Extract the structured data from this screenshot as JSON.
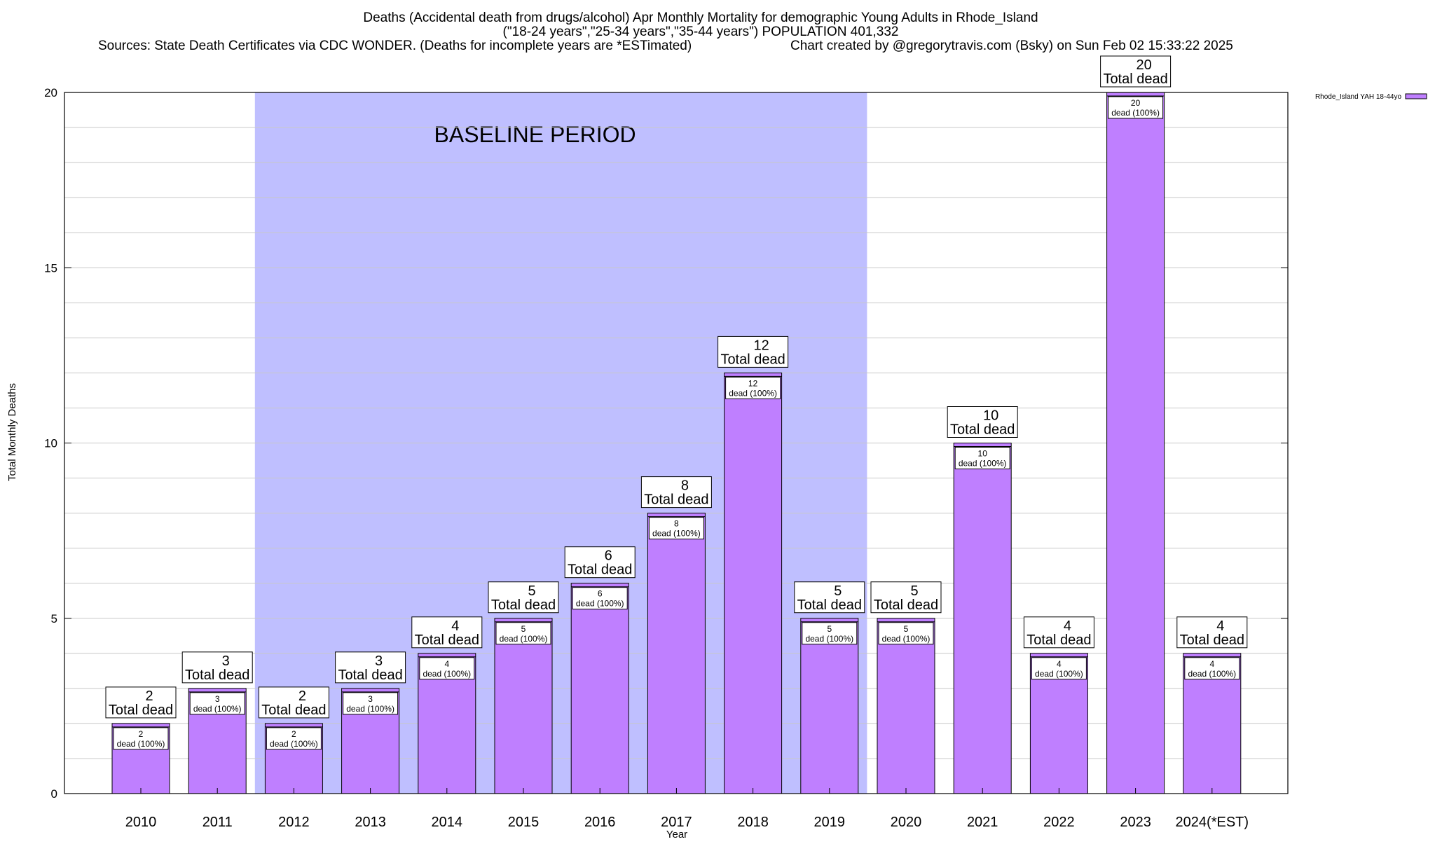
{
  "header": {
    "title_line1": "Deaths (Accidental death from drugs/alcohol) Apr Monthly Mortality for demographic Young Adults in Rhode_Island",
    "title_line2": "(\"18-24 years\",\"25-34 years\",\"35-44 years\") POPULATION 401,332",
    "sources": "Sources: State Death Certificates via CDC WONDER. (Deaths for incomplete years are *ESTimated)",
    "credit": "Chart created by @gregorytravis.com (Bsky) on Sun Feb 02 15:33:22 2025"
  },
  "chart_data": {
    "type": "bar",
    "xlabel": "Year",
    "ylabel": "Total Monthly Deaths",
    "ylim": [
      0,
      20
    ],
    "yticks": [
      0,
      5,
      10,
      15,
      20
    ],
    "grid": true,
    "legend_placement": "top-right",
    "categories": [
      "2010",
      "2011",
      "2012",
      "2013",
      "2014",
      "2015",
      "2016",
      "2017",
      "2018",
      "2019",
      "2020",
      "2021",
      "2022",
      "2023",
      "2024(*EST)"
    ],
    "series": [
      {
        "name": "Rhode_Island YAH 18-44yo",
        "values": [
          2,
          3,
          2,
          3,
          4,
          5,
          6,
          8,
          12,
          5,
          5,
          10,
          4,
          20,
          4
        ],
        "color": "#bf7fff"
      }
    ],
    "total_label_suffix": "Total dead",
    "inner_label_suffix": "dead (100%)",
    "baseline_period": {
      "label": "BASELINE PERIOD",
      "start": "2012",
      "end": "2019",
      "color": "#bfbfff"
    }
  }
}
